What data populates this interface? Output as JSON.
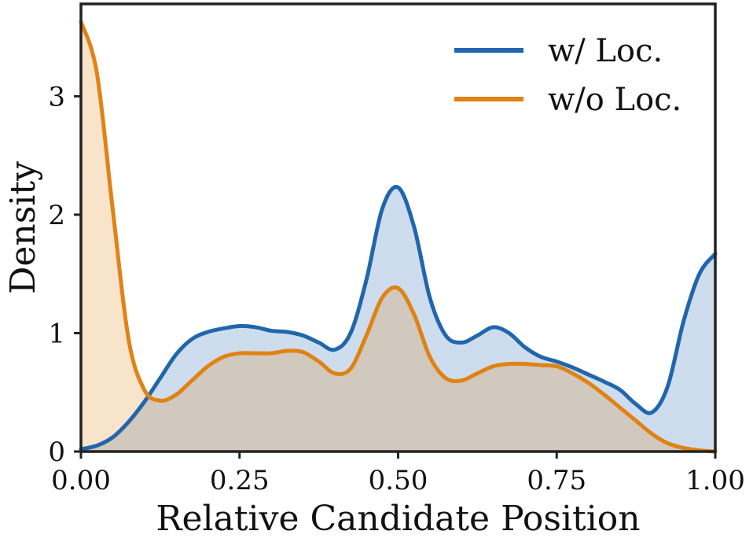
{
  "chart_data": {
    "type": "area",
    "title": "",
    "xlabel": "Relative Candidate Position",
    "ylabel": "Density",
    "xlim": [
      0,
      1
    ],
    "ylim": [
      0,
      3.78
    ],
    "grid": false,
    "legend_position": "top-right",
    "xticks": [
      0,
      0.25,
      0.5,
      0.75,
      1.0
    ],
    "xtick_labels": [
      "0.00",
      "0.25",
      "0.50",
      "0.75",
      "1.00"
    ],
    "yticks": [
      0,
      1,
      2,
      3
    ],
    "ytick_labels": [
      "0",
      "1",
      "2",
      "3"
    ],
    "series": [
      {
        "name": "w/ Loc.",
        "color": "#2166ac",
        "fill": "#cfdcec",
        "x": [
          0,
          0.025,
          0.05,
          0.075,
          0.1,
          0.125,
          0.15,
          0.175,
          0.2,
          0.225,
          0.25,
          0.275,
          0.3,
          0.325,
          0.35,
          0.375,
          0.4,
          0.425,
          0.45,
          0.475,
          0.5,
          0.525,
          0.55,
          0.575,
          0.6,
          0.625,
          0.65,
          0.675,
          0.7,
          0.725,
          0.75,
          0.775,
          0.8,
          0.825,
          0.85,
          0.875,
          0.9,
          0.925,
          0.95,
          0.975,
          1.0
        ],
        "y": [
          0.02,
          0.05,
          0.12,
          0.25,
          0.42,
          0.62,
          0.82,
          0.95,
          1.01,
          1.04,
          1.06,
          1.05,
          1.02,
          1.01,
          0.98,
          0.92,
          0.86,
          1.0,
          1.45,
          2.05,
          2.23,
          1.9,
          1.3,
          0.98,
          0.92,
          0.98,
          1.05,
          1.0,
          0.88,
          0.8,
          0.76,
          0.71,
          0.65,
          0.59,
          0.52,
          0.4,
          0.33,
          0.55,
          1.1,
          1.5,
          1.67
        ]
      },
      {
        "name": "w/o Loc.",
        "color": "#e08214",
        "fill": "#f8dfc3",
        "x": [
          0,
          0.025,
          0.05,
          0.075,
          0.1,
          0.125,
          0.15,
          0.175,
          0.2,
          0.225,
          0.25,
          0.275,
          0.3,
          0.325,
          0.35,
          0.375,
          0.4,
          0.425,
          0.45,
          0.475,
          0.5,
          0.525,
          0.55,
          0.575,
          0.6,
          0.625,
          0.65,
          0.675,
          0.7,
          0.725,
          0.75,
          0.775,
          0.8,
          0.825,
          0.85,
          0.875,
          0.9,
          0.925,
          0.95,
          0.975,
          1.0
        ],
        "y": [
          3.63,
          3.2,
          2.05,
          0.95,
          0.52,
          0.43,
          0.48,
          0.6,
          0.72,
          0.8,
          0.83,
          0.83,
          0.83,
          0.85,
          0.84,
          0.76,
          0.66,
          0.7,
          0.98,
          1.3,
          1.38,
          1.16,
          0.8,
          0.62,
          0.6,
          0.66,
          0.72,
          0.74,
          0.74,
          0.73,
          0.72,
          0.66,
          0.58,
          0.48,
          0.37,
          0.26,
          0.15,
          0.07,
          0.03,
          0.01,
          0.0
        ]
      }
    ]
  }
}
